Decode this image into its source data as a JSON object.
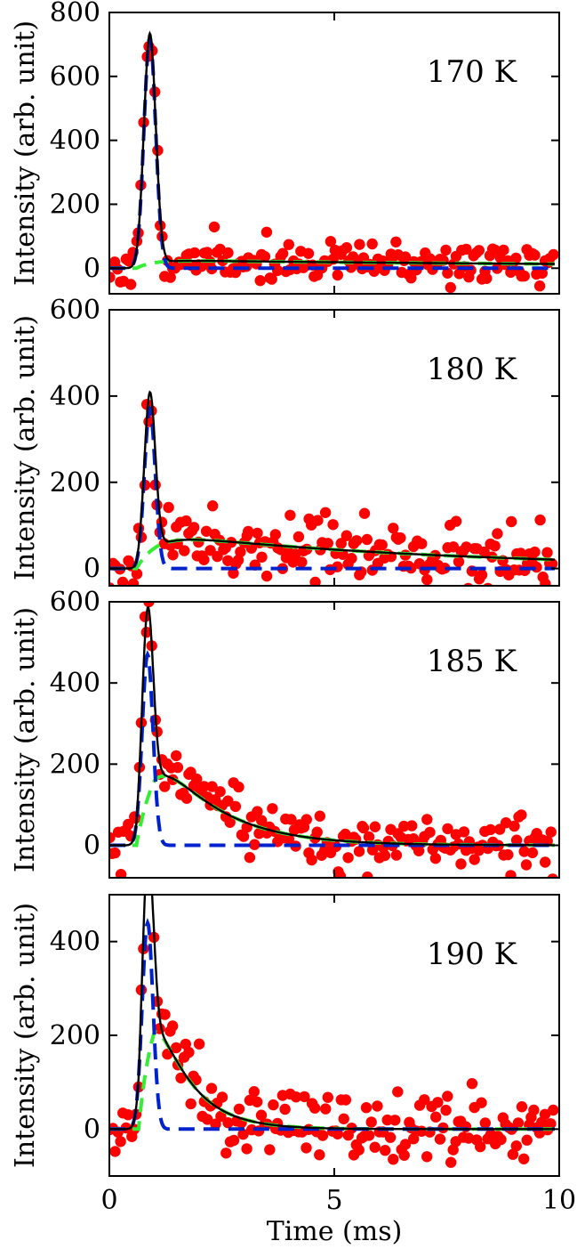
{
  "chart_data": [
    {
      "type": "line",
      "annotation": "170 K",
      "ylabel": "Intensity (arb. unit)",
      "xlim": [
        0,
        10
      ],
      "ylim": [
        -80,
        800
      ],
      "yticks": [
        0,
        200,
        400,
        600,
        800
      ],
      "fast_component": {
        "amplitude": 720,
        "center": 0.9,
        "width": 0.13
      },
      "slow_component": {
        "rise_onset": 0.6,
        "rise_time": 0.35,
        "amplitude": 25,
        "decay_time": 14,
        "delay": 1.0
      },
      "scatter": {
        "x_min": 0,
        "x_max": 9.9,
        "noise": 30,
        "seed": 11
      }
    },
    {
      "type": "line",
      "annotation": "180 K",
      "ylabel": "Intensity (arb. unit)",
      "xlim": [
        0,
        10
      ],
      "ylim": [
        -40,
        600
      ],
      "yticks": [
        0,
        200,
        400,
        600
      ],
      "fast_component": {
        "amplitude": 370,
        "center": 0.9,
        "width": 0.12
      },
      "slow_component": {
        "rise_onset": 0.6,
        "rise_time": 0.45,
        "amplitude": 80,
        "decay_time": 6.5,
        "delay": 1.1
      },
      "scatter": {
        "x_min": 0,
        "x_max": 9.9,
        "noise": 35,
        "seed": 23
      }
    },
    {
      "type": "line",
      "annotation": "185 K",
      "ylabel": "Intensity (arb. unit)",
      "xlim": [
        0,
        10
      ],
      "ylim": [
        -80,
        600
      ],
      "yticks": [
        0,
        200,
        400,
        600
      ],
      "fast_component": {
        "amplitude": 470,
        "center": 0.85,
        "width": 0.12
      },
      "slow_component": {
        "rise_onset": 0.6,
        "rise_time": 0.45,
        "amplitude": 270,
        "decay_time": 1.3,
        "delay": 1.0
      },
      "scatter": {
        "x_min": 0,
        "x_max": 9.9,
        "noise": 35,
        "seed": 37
      }
    },
    {
      "type": "line",
      "annotation": "190 K",
      "ylabel": "Intensity (arb. unit)",
      "xlabel": "Time (ms)",
      "xlim": [
        0,
        10
      ],
      "ylim": [
        -100,
        500
      ],
      "yticks": [
        0,
        200,
        400
      ],
      "xticks": [
        0,
        5,
        10
      ],
      "fast_component": {
        "amplitude": 440,
        "center": 0.85,
        "width": 0.12
      },
      "slow_component": {
        "rise_onset": 0.65,
        "rise_time": 0.3,
        "amplitude": 300,
        "decay_time": 0.75,
        "delay": 1.0
      },
      "scatter": {
        "x_min": 0,
        "x_max": 9.9,
        "noise": 35,
        "seed": 51
      }
    }
  ],
  "colors": {
    "data_points": "#ff0000",
    "fit_total": "#000000",
    "fast_component": "#0022cc",
    "slow_component": "#33ee33"
  }
}
